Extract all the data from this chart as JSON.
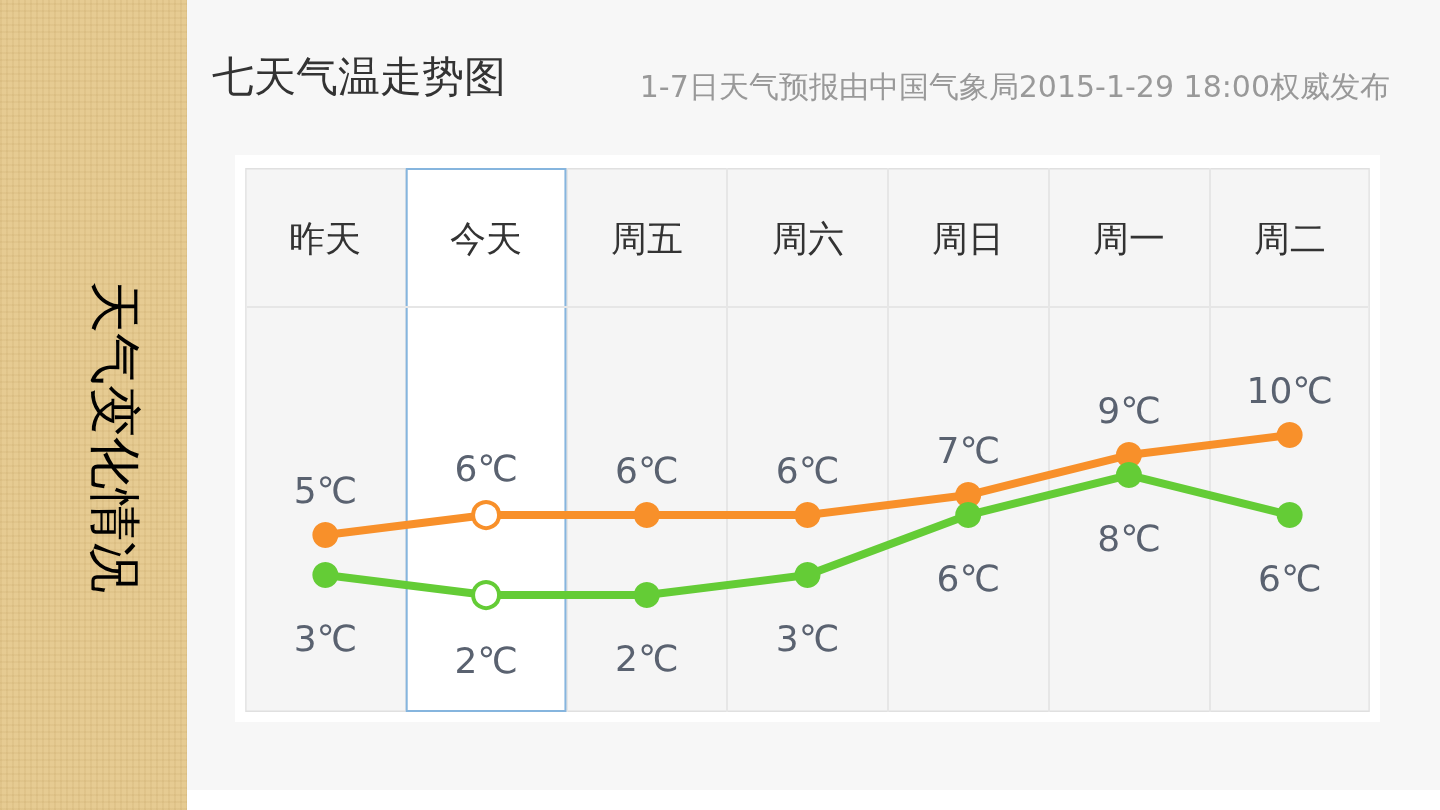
{
  "chart_data": {
    "type": "line",
    "title": "七天气温走势图",
    "subtitle": "1-7日天气预报由中国气象局2015-1-29 18:00权威发布",
    "annotations": [
      "天气变化情况"
    ],
    "categories": [
      "昨天",
      "今天",
      "周五",
      "周六",
      "周日",
      "周一",
      "周二"
    ],
    "series": [
      {
        "color": "#f8902a",
        "values": [
          5,
          6,
          6,
          6,
          7,
          9,
          10
        ],
        "value_labels": [
          "5℃",
          "6℃",
          "6℃",
          "6℃",
          "7℃",
          "9℃",
          "10℃"
        ]
      },
      {
        "color": "#64cc36",
        "values": [
          3,
          2,
          2,
          3,
          6,
          8,
          6
        ],
        "value_labels": [
          "3℃",
          "2℃",
          "2℃",
          "3℃",
          "6℃",
          "8℃",
          "6℃"
        ]
      }
    ],
    "bands": [
      {
        "axis": "x",
        "from": "今天",
        "to": "今天",
        "color": "#86b5de"
      }
    ],
    "grid": "x",
    "marker": "circle",
    "line_style": "solid",
    "tick_labels": "x"
  }
}
